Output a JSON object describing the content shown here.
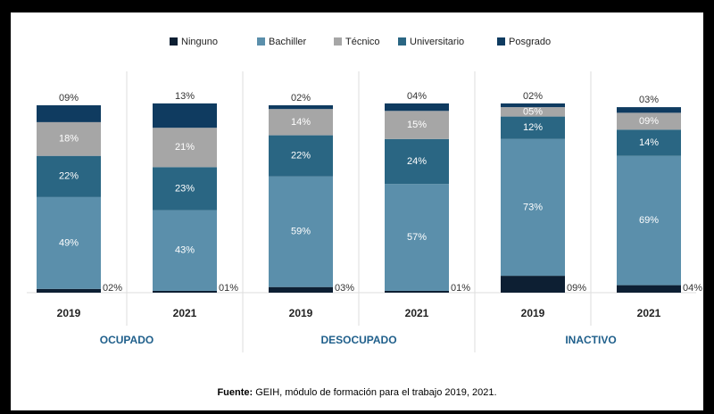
{
  "chart_data": {
    "type": "bar",
    "stacked": true,
    "categories": [
      "2019",
      "2021",
      "2019",
      "2021",
      "2019",
      "2021"
    ],
    "groups": [
      "OCUPADO",
      "DESOCUPADO",
      "INACTIVO"
    ],
    "ylim": [
      0,
      100
    ],
    "series": [
      {
        "name": "Ninguno",
        "color": "#0d1f33",
        "values": [
          2,
          1,
          3,
          1,
          9,
          4
        ],
        "value_labels": [
          "02%",
          "01%",
          "03%",
          "01%",
          "09%",
          "04%"
        ]
      },
      {
        "name": "Bachiller",
        "color": "#5b8fab",
        "values": [
          49,
          43,
          59,
          57,
          73,
          69
        ],
        "value_labels": [
          "49%",
          "43%",
          "59%",
          "57%",
          "73%",
          "69%"
        ]
      },
      {
        "name": "Universitario",
        "color": "#2a6683",
        "values": [
          22,
          23,
          22,
          24,
          12,
          14
        ],
        "value_labels": [
          "22%",
          "23%",
          "22%",
          "24%",
          "12%",
          "14%"
        ]
      },
      {
        "name": "Técnico",
        "color": "#a6a6a6",
        "values": [
          18,
          21,
          14,
          15,
          5,
          9
        ],
        "value_labels": [
          "18%",
          "21%",
          "14%",
          "15%",
          "05%",
          "09%"
        ]
      },
      {
        "name": "Posgrado",
        "color": "#0f3b60",
        "values": [
          9,
          13,
          2,
          4,
          2,
          3
        ],
        "value_labels": [
          "09%",
          "13%",
          "02%",
          "04%",
          "02%",
          "03%"
        ]
      }
    ],
    "source_label": "Fuente:",
    "source": "GEIH, módulo de formación para el trabajo 2019, 2021."
  }
}
